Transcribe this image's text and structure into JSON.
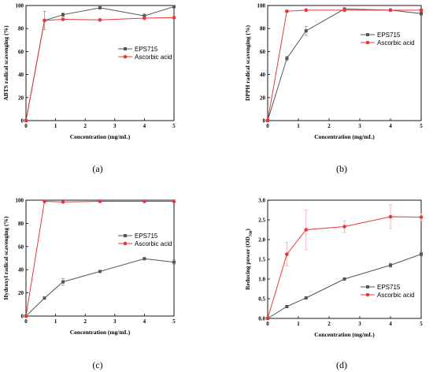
{
  "chart_data": [
    {
      "type": "line",
      "panel_label": "(a)",
      "xlabel": "Concentration (mg/mL)",
      "ylabel": "ABTS radical scavenging (%)",
      "xlim": [
        0,
        5
      ],
      "ylim": [
        0,
        100
      ],
      "xticks": [
        0,
        1,
        2,
        3,
        4,
        5
      ],
      "yticks": [
        0,
        20,
        40,
        60,
        80,
        100
      ],
      "ytick_labels": [
        "0",
        "20",
        "40",
        "60",
        "80",
        "100"
      ],
      "legend_position": "right-center",
      "series": [
        {
          "name": "EPS715",
          "color": "#555555",
          "marker": "square",
          "x": [
            0,
            0.625,
            1.25,
            2.5,
            4,
            5
          ],
          "y": [
            0,
            87,
            92,
            98,
            91,
            99
          ],
          "err": [
            0,
            8,
            1.5,
            1,
            2,
            1
          ]
        },
        {
          "name": "Ascorbic acid",
          "color": "#e8373a",
          "marker": "circle",
          "x": [
            0,
            0.625,
            1.25,
            2.5,
            4,
            5
          ],
          "y": [
            0,
            87,
            88,
            87.5,
            89,
            89.5
          ],
          "err": [
            0,
            1,
            1,
            1,
            1,
            1
          ]
        }
      ]
    },
    {
      "type": "line",
      "panel_label": "(b)",
      "xlabel": "Concentration (mg/mL)",
      "ylabel": "DPPH radical scavenging (%)",
      "xlim": [
        0,
        5
      ],
      "ylim": [
        0,
        100
      ],
      "xticks": [
        0,
        1,
        2,
        3,
        4,
        5
      ],
      "yticks": [
        0,
        20,
        40,
        60,
        80,
        100
      ],
      "ytick_labels": [
        "0",
        "20",
        "40",
        "60",
        "80",
        "100"
      ],
      "legend_position": "right-center",
      "series": [
        {
          "name": "EPS715",
          "color": "#555555",
          "marker": "square",
          "x": [
            0,
            0.625,
            1.25,
            2.5,
            4,
            5
          ],
          "y": [
            0,
            54,
            78,
            97,
            96,
            93
          ],
          "err": [
            0,
            2,
            4,
            1,
            1,
            1.5
          ]
        },
        {
          "name": "Ascorbic acid",
          "color": "#e8373a",
          "marker": "circle",
          "x": [
            0,
            0.625,
            1.25,
            2.5,
            4,
            5
          ],
          "y": [
            0,
            95,
            96,
            96,
            96,
            96
          ],
          "err": [
            0,
            1,
            1,
            1,
            1,
            1
          ]
        }
      ]
    },
    {
      "type": "line",
      "panel_label": "(c)",
      "xlabel": "Concentration (mg/mL)",
      "ylabel": "Hydroxyl radical scavenging (%)",
      "xlim": [
        0,
        5
      ],
      "ylim": [
        0,
        100
      ],
      "xticks": [
        0,
        1,
        2,
        3,
        4,
        5
      ],
      "yticks": [
        0,
        20,
        40,
        60,
        80,
        100
      ],
      "ytick_labels": [
        "0",
        "20",
        "40",
        "60",
        "80",
        "100"
      ],
      "legend_position": "right-center",
      "series": [
        {
          "name": "EPS715",
          "color": "#555555",
          "marker": "square",
          "x": [
            0,
            0.625,
            1.25,
            2.5,
            4,
            5
          ],
          "y": [
            0,
            15.5,
            29.5,
            38.5,
            49.5,
            46.5
          ],
          "err": [
            0,
            1,
            3,
            1,
            1,
            2
          ]
        },
        {
          "name": "Ascorbic acid",
          "color": "#e8373a",
          "marker": "circle",
          "x": [
            0,
            0.625,
            1.25,
            2.5,
            4,
            5
          ],
          "y": [
            0,
            99,
            98.5,
            99,
            99,
            99
          ],
          "err": [
            0,
            0.5,
            0.5,
            0.5,
            0.5,
            0.5
          ]
        }
      ]
    },
    {
      "type": "line",
      "panel_label": "(d)",
      "xlabel": "Concentration (mg/mL)",
      "ylabel": "Reducing power   (OD",
      "ylabel_subscript": "700",
      "ylabel_suffix": ")",
      "xlim": [
        0,
        5
      ],
      "ylim": [
        0,
        3
      ],
      "xticks": [
        0,
        1,
        2,
        3,
        4,
        5
      ],
      "yticks": [
        0,
        0.5,
        1,
        1.5,
        2,
        2.5,
        3
      ],
      "ytick_labels": [
        "0.0",
        "0.5",
        "1.0",
        "1.5",
        "2.0",
        "2.5",
        "3.0"
      ],
      "legend_position": "lower-right",
      "series": [
        {
          "name": "EPS715",
          "color": "#555555",
          "marker": "square",
          "x": [
            0,
            0.625,
            1.25,
            2.5,
            4,
            5
          ],
          "y": [
            0,
            0.3,
            0.52,
            1.0,
            1.35,
            1.63
          ],
          "err": [
            0,
            0.03,
            0.03,
            0.03,
            0.05,
            0.05
          ]
        },
        {
          "name": "Ascorbic acid",
          "color": "#e8373a",
          "marker": "circle",
          "x": [
            0,
            0.625,
            1.25,
            2.5,
            4,
            5
          ],
          "y": [
            0,
            1.63,
            2.25,
            2.33,
            2.58,
            2.57
          ],
          "err": [
            0,
            0.3,
            0.5,
            0.15,
            0.3,
            0.1
          ]
        }
      ]
    }
  ]
}
